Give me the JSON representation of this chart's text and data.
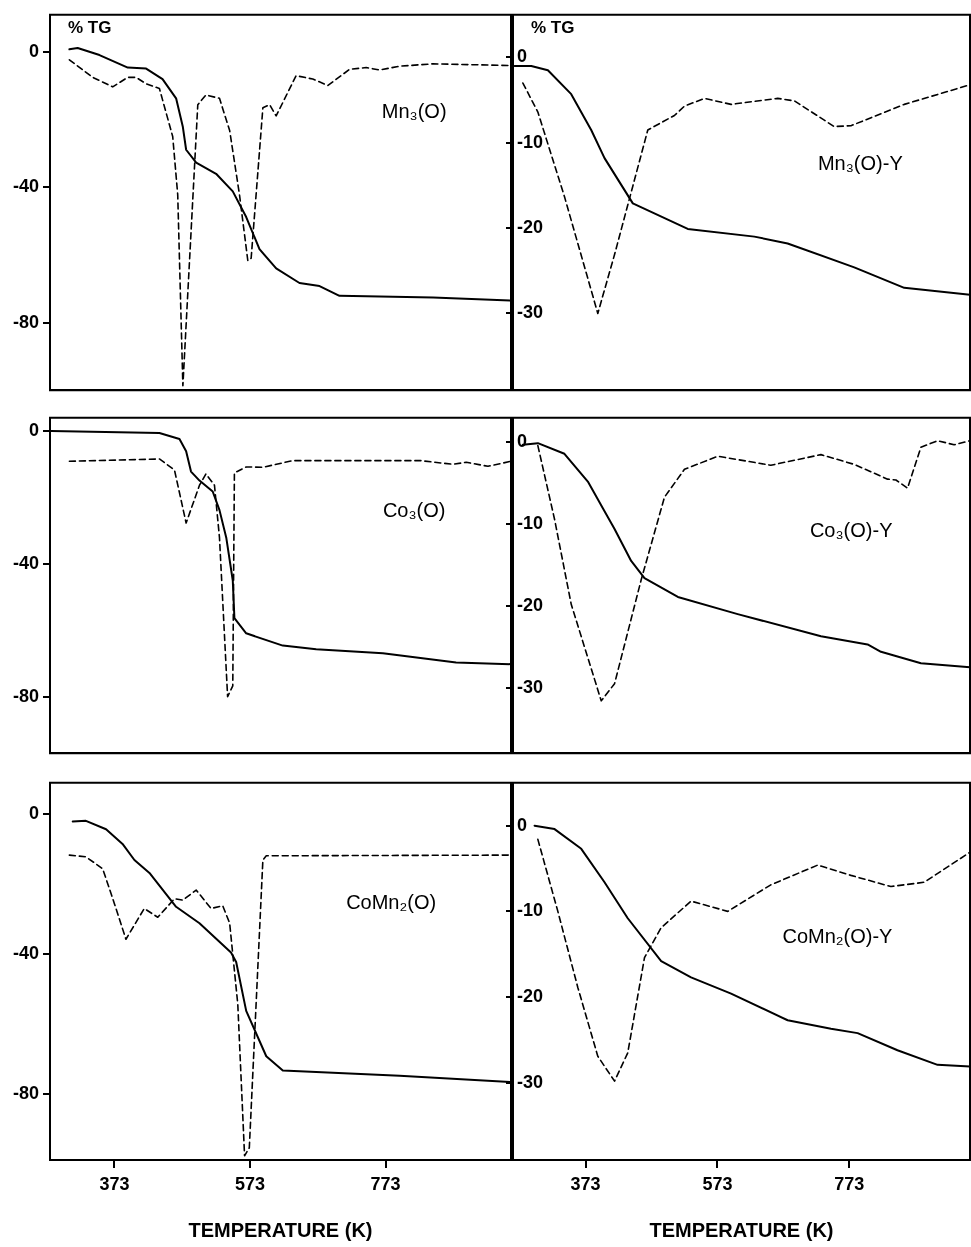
{
  "chart_data": [
    {
      "type": "line",
      "ylabel": "% TG",
      "annotations": [
        "Mn₃(O)"
      ],
      "xlim": [
        278,
        958
      ],
      "xticks": [
        373,
        573,
        773
      ],
      "ylim": [
        -100,
        11
      ],
      "yticks": [
        0,
        -40,
        -80
      ],
      "tick_labels": "y",
      "grid": false,
      "legend": false,
      "series": [
        {
          "color": "#000000",
          "line_style": "solid",
          "x": [
            306.6,
            318.8,
            351,
            392.7,
            419.8,
            444,
            464,
            474,
            478.8,
            493.6,
            523,
            547.6,
            567.4,
            587,
            611.6,
            646,
            675.6,
            705,
            843,
            958
          ],
          "values": [
            0.8,
            1.2,
            -0.9,
            -4.6,
            -4.9,
            -8,
            -13.7,
            -22.2,
            -28.9,
            -32.7,
            -36,
            -41.2,
            -48.8,
            -58.3,
            -64,
            -68.3,
            -69.2,
            -72.1,
            -72.6,
            -73.5
          ]
        },
        {
          "color": "#000000",
          "line_style": "dashed",
          "x": [
            306.6,
            341,
            370.5,
            392.7,
            405,
            419.8,
            439.4,
            459,
            466.4,
            474,
            484,
            496,
            508,
            528,
            543,
            557.5,
            569.8,
            574.7,
            592,
            602,
            611.6,
            641,
            665.6,
            688,
            720,
            744.4,
            764,
            794,
            843,
            958
          ],
          "values": [
            -2.3,
            -7.5,
            -10.3,
            -7.5,
            -7.5,
            -9.4,
            -10.8,
            -25,
            -42.2,
            -98.7,
            -61,
            -15.6,
            -12.7,
            -13.7,
            -23.2,
            -42.2,
            -61.7,
            -61,
            -16.5,
            -15.6,
            -18.9,
            -7,
            -8,
            -9.9,
            -5.1,
            -4.6,
            -5.3,
            -4.2,
            -3.5,
            -4
          ]
        }
      ]
    },
    {
      "type": "line",
      "ylabel": "% TG",
      "annotations": [
        "Mn₃(O)-Y"
      ],
      "xlim": [
        263,
        956
      ],
      "xticks": [
        373,
        573,
        773
      ],
      "ylim": [
        -39,
        5
      ],
      "yticks": [
        0,
        -10,
        -20,
        -30
      ],
      "tick_labels": "y",
      "grid": false,
      "legend": false,
      "series": [
        {
          "color": "#000000",
          "line_style": "solid",
          "x": [
            265.4,
            290.7,
            315.9,
            351.3,
            381.6,
            401.8,
            444.7,
            528,
            629,
            679.5,
            780.5,
            856.3,
            956
          ],
          "values": [
            -1,
            -1,
            -1.5,
            -4.3,
            -8.5,
            -11.8,
            -17.1,
            -20.1,
            -21,
            -21.8,
            -24.6,
            -27,
            -27.8
          ]
        },
        {
          "color": "#000000",
          "line_style": "dashed",
          "x": [
            278,
            300.7,
            341,
            391.6,
            417,
            467.4,
            507.8,
            523,
            553.3,
            593.7,
            664.4,
            690,
            750,
            775.5,
            856.3,
            956
          ],
          "values": [
            -3,
            -6.4,
            -16.3,
            -30,
            -23.1,
            -8.5,
            -6.8,
            -5.7,
            -4.8,
            -5.5,
            -4.8,
            -5.1,
            -8.1,
            -8,
            -5.5,
            -3.2
          ]
        }
      ]
    },
    {
      "type": "line",
      "annotations": [
        "Co₃(O)"
      ],
      "xlim": [
        278,
        958
      ],
      "xticks": [
        373,
        573,
        773
      ],
      "ylim": [
        -97,
        4
      ],
      "yticks": [
        0,
        -40,
        -80
      ],
      "tick_labels": "y",
      "grid": false,
      "legend": false,
      "series": [
        {
          "color": "#000000",
          "line_style": "solid",
          "x": [
            279.6,
            439.4,
            469,
            478.8,
            486,
            498.5,
            518,
            528,
            538,
            547.6,
            550,
            567.4,
            621.4,
            670.6,
            769,
            877,
            958
          ],
          "values": [
            0,
            -0.6,
            -2.4,
            -6.1,
            -12.2,
            -14.9,
            -18.2,
            -23.8,
            -32.1,
            -45,
            -56.3,
            -60.9,
            -64.6,
            -65.7,
            -66.9,
            -69.7,
            -70.2
          ]
        },
        {
          "color": "#000000",
          "line_style": "dashed",
          "x": [
            306.6,
            439.4,
            461.6,
            478.8,
            498.5,
            508,
            520.6,
            528,
            540,
            547.6,
            550,
            567.4,
            592,
            636,
            825,
            872,
            892,
            924,
            958
          ],
          "values": [
            -9.1,
            -8.4,
            -11.7,
            -27.7,
            -16.3,
            -12.9,
            -16.3,
            -32.1,
            -80,
            -76.7,
            -12.6,
            -10.8,
            -10.9,
            -8.9,
            -8.9,
            -10,
            -9.4,
            -10.6,
            -9.1
          ]
        }
      ]
    },
    {
      "type": "line",
      "annotations": [
        "Co₃(O)-Y"
      ],
      "xlim": [
        263,
        956
      ],
      "xticks": [
        373,
        573,
        773
      ],
      "ylim": [
        -38,
        3
      ],
      "yticks": [
        0,
        -10,
        -20,
        -30
      ],
      "tick_labels": "y",
      "grid": false,
      "legend": false,
      "series": [
        {
          "color": "#000000",
          "line_style": "solid",
          "x": [
            278,
            300.7,
            341,
            376.5,
            417,
            442.2,
            462.4,
            513,
            603.7,
            730,
            800.7,
            821,
            881.6,
            956
          ],
          "values": [
            -0.3,
            -0.1,
            -1.4,
            -4.8,
            -10.6,
            -14.5,
            -16.6,
            -18.9,
            -21,
            -23.7,
            -24.7,
            -25.6,
            -27,
            -27.5
          ]
        },
        {
          "color": "#000000",
          "line_style": "dashed",
          "x": [
            300.7,
            326,
            351.3,
            396.8,
            417,
            457.4,
            492.7,
            523,
            573.4,
            654,
            730,
            780.5,
            831,
            843.7,
            861.3,
            881.6,
            906.8,
            932,
            956
          ],
          "values": [
            -0.4,
            -9.4,
            -19.8,
            -31.6,
            -29.5,
            -16.8,
            -6.7,
            -3.3,
            -1.7,
            -2.8,
            -1.5,
            -2.7,
            -4.5,
            -4.6,
            -5.6,
            -0.6,
            0.2,
            -0.3,
            0.2
          ]
        }
      ]
    },
    {
      "type": "line",
      "xlabel": "TEMPERATURE (K)",
      "annotations": [
        "CoMn₂(O)"
      ],
      "xlim": [
        278,
        958
      ],
      "xticks": [
        373,
        573,
        773
      ],
      "ylim": [
        -99,
        9
      ],
      "yticks": [
        0,
        -40,
        -80
      ],
      "grid": false,
      "legend": false,
      "series": [
        {
          "color": "#000000",
          "line_style": "solid",
          "x": [
            311.5,
            331,
            360.7,
            385,
            402.5,
            424.7,
            464,
            498.5,
            545,
            552.6,
            567.4,
            597,
            621.4,
            793.7,
            958
          ],
          "values": [
            -2.1,
            -1.9,
            -4.3,
            -8.5,
            -13.1,
            -16.8,
            -26.5,
            -31.2,
            -39.6,
            -42.3,
            -56.3,
            -69.3,
            -73.4,
            -74.9,
            -76.7
          ]
        },
        {
          "color": "#000000",
          "line_style": "dashed",
          "x": [
            306.6,
            331,
            355.7,
            373,
            390,
            417,
            437,
            461.6,
            474,
            493.6,
            515.6,
            532.8,
            543,
            555,
            565,
            572,
            582,
            592,
            597,
            958
          ],
          "values": [
            -11.7,
            -12.2,
            -15.6,
            -25.6,
            -35.8,
            -27,
            -29.5,
            -24.2,
            -24.6,
            -21.7,
            -27,
            -26.2,
            -31.2,
            -54.4,
            -97.8,
            -95.5,
            -54.4,
            -13.1,
            -11.9,
            -11.7
          ]
        }
      ]
    },
    {
      "type": "line",
      "xlabel": "TEMPERATURE (K)",
      "annotations": [
        "CoMn₂(O)-Y"
      ],
      "xlim": [
        263,
        956
      ],
      "xticks": [
        373,
        573,
        773
      ],
      "ylim": [
        -39,
        5
      ],
      "yticks": [
        0,
        -10,
        -20,
        -30
      ],
      "grid": false,
      "legend": false,
      "series": [
        {
          "color": "#000000",
          "line_style": "solid",
          "x": [
            295.7,
            326,
            366.5,
            401.8,
            437,
            487.7,
            533,
            593.7,
            679.5,
            745.2,
            785.6,
            846,
            906.8,
            956
          ],
          "values": [
            0,
            -0.4,
            -2.7,
            -6.6,
            -10.8,
            -15.8,
            -17.7,
            -19.6,
            -22.7,
            -23.7,
            -24.2,
            -26.2,
            -27.9,
            -28.1
          ]
        },
        {
          "color": "#000000",
          "line_style": "dashed",
          "x": [
            300.7,
            331,
            361.4,
            391.6,
            417,
            437,
            462.4,
            487.7,
            533,
            588.6,
            654,
            725,
            775.5,
            836,
            886.6,
            956
          ],
          "values": [
            -1.6,
            -10,
            -18.9,
            -26.9,
            -29.8,
            -26.5,
            -15.4,
            -11.9,
            -8.8,
            -10,
            -6.9,
            -4.6,
            -5.8,
            -7.1,
            -6.6,
            -3.1
          ]
        }
      ]
    }
  ]
}
